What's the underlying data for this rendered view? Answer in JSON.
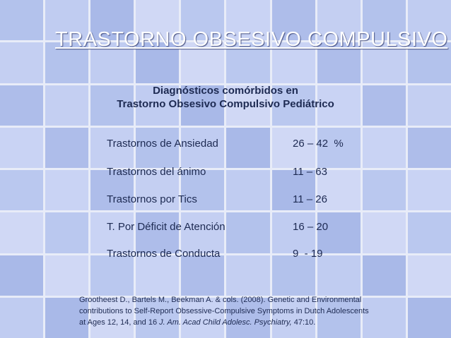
{
  "title": "TRASTORNO OBSESIVO COMPULSIVO",
  "subtitle": {
    "line1": "Diagnósticos comórbidos en",
    "line2": "Trastorno Obsesivo Compulsivo Pediátrico"
  },
  "rows": [
    {
      "label": "Trastornos de Ansiedad",
      "value": "26 – 42  %"
    },
    {
      "label": "Trastornos del ánimo",
      "value": "11 – 63"
    },
    {
      "label": "Trastornos por Tics",
      "value": "11 – 26"
    },
    {
      "label": "T. Por Déficit de Atención",
      "value": "16 – 20"
    },
    {
      "label": "Trastornos de Conducta",
      "value": "9  - 19"
    }
  ],
  "reference": {
    "text": "Grootheest D., Bartels M., Beekman A.  & cols. (2008). Genetic and Environmental contributions to Self-Report Obsessive-Compulsive Symptoms in Dutch Adolescents at Ages 12, 14, and 16",
    "journal": "J. Am. Acad Child Adolesc. Psychiatry,",
    "volume": "47:10."
  },
  "colors": {
    "tile": "#b9c7ee",
    "grid_line": "#e8ecf8",
    "text": "#1d2a52",
    "title": "#ffffff"
  }
}
